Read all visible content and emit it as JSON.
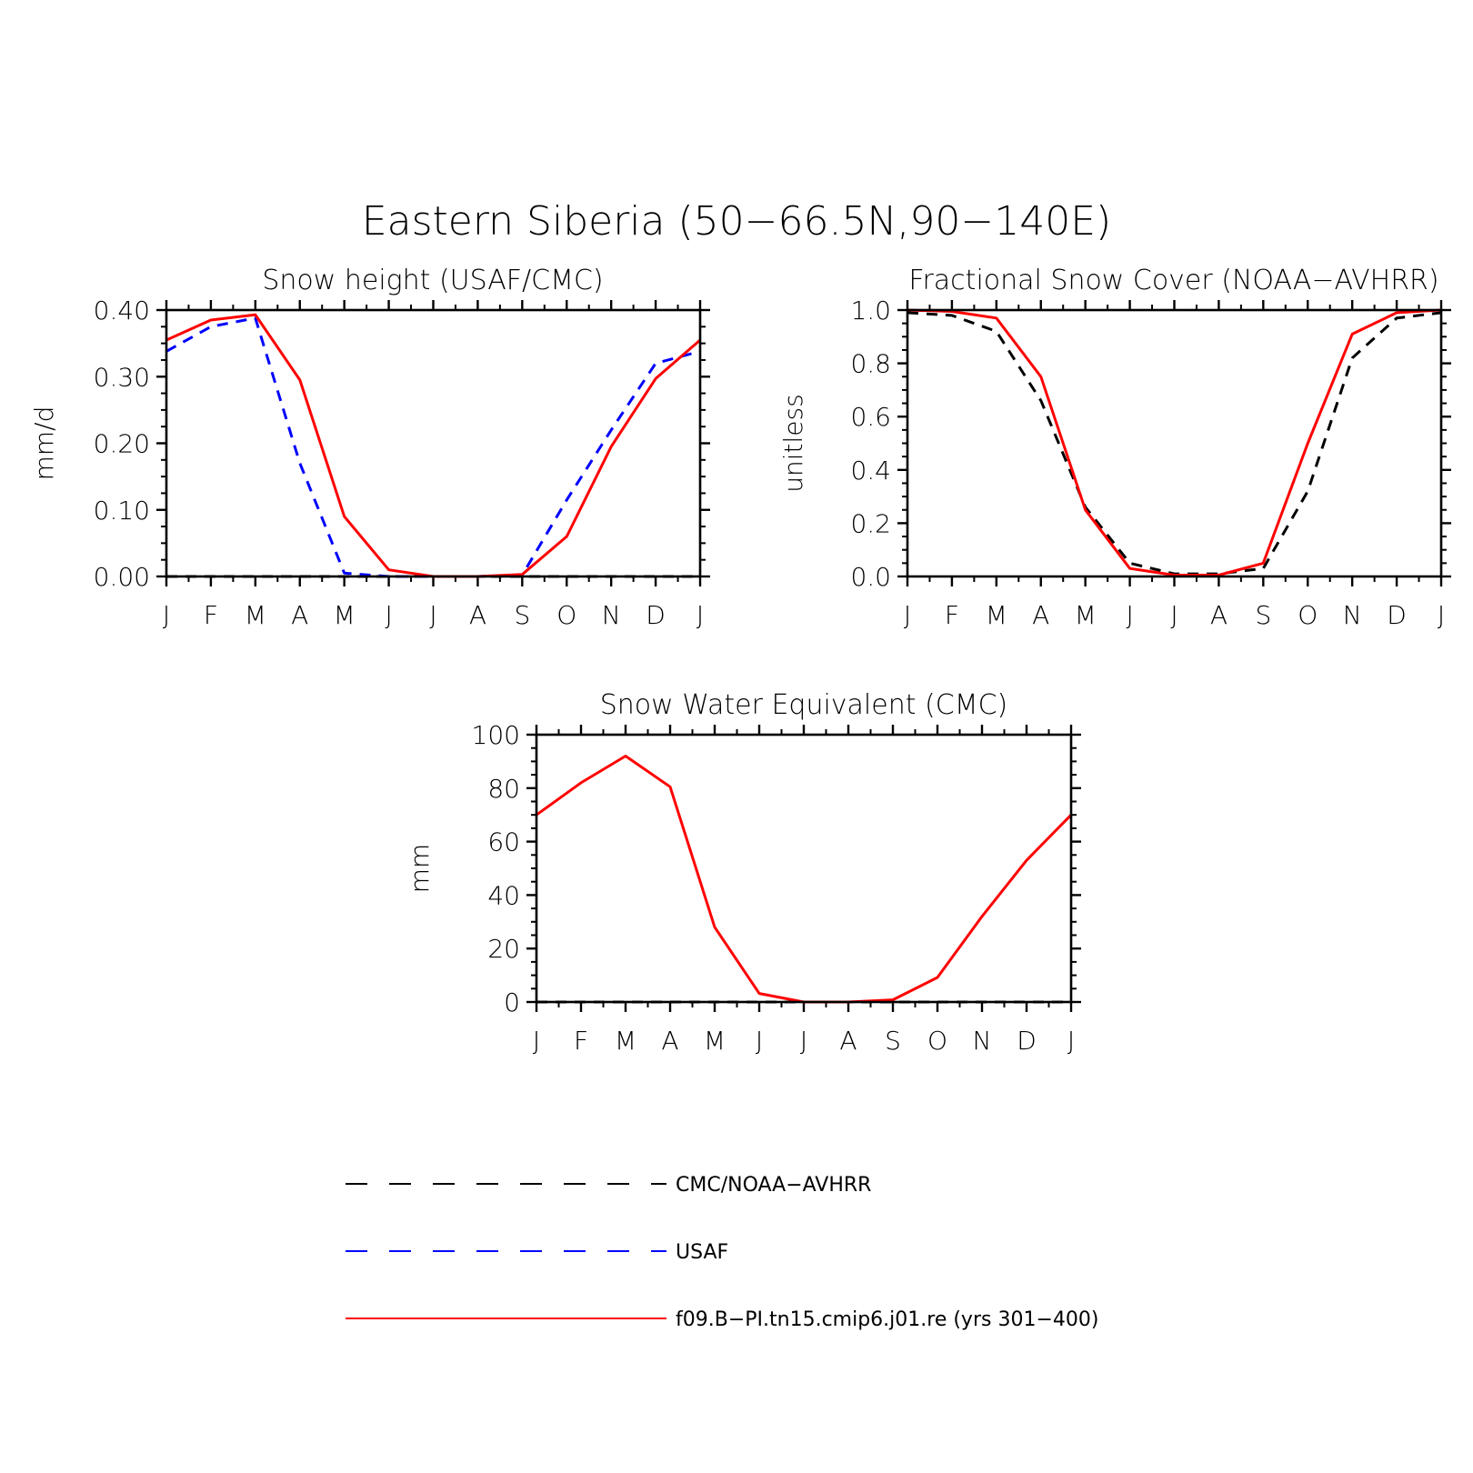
{
  "figure": {
    "title": "Eastern Siberia (50−66.5N,90−140E)"
  },
  "colors": {
    "model": "#ff0000",
    "cmc_noaa": "#000000",
    "usaf": "#0000ff"
  },
  "legend": [
    {
      "key": "cmc",
      "label": "CMC/NOAA−AVHRR",
      "color": "#000000",
      "style": "dashed"
    },
    {
      "key": "usaf",
      "label": "USAF",
      "color": "#0000ff",
      "style": "dashed"
    },
    {
      "key": "model",
      "label": "f09.B−PI.tn15.cmip6.j01.re (yrs 301−400)",
      "color": "#ff0000",
      "style": "solid"
    }
  ],
  "chart_data": [
    {
      "type": "line",
      "title": "Snow height (USAF/CMC)",
      "ylabel": "mm/d",
      "xlabel": "",
      "categories": [
        "J",
        "F",
        "M",
        "A",
        "M",
        "J",
        "J",
        "A",
        "S",
        "O",
        "N",
        "D",
        "J"
      ],
      "ylim": [
        0,
        0.4
      ],
      "yticks": [
        "0.00",
        "0.10",
        "0.20",
        "0.30",
        "0.40"
      ],
      "yticks_values": [
        0,
        0.1,
        0.2,
        0.3,
        0.4
      ],
      "series": [
        {
          "key": "model",
          "values": [
            0.355,
            0.385,
            0.393,
            0.295,
            0.09,
            0.01,
            0.0,
            0.0,
            0.003,
            0.06,
            0.195,
            0.297,
            0.355
          ]
        },
        {
          "key": "usaf",
          "values": [
            0.338,
            0.375,
            0.388,
            0.17,
            0.005,
            0.0,
            0.0,
            0.0,
            0.002,
            0.115,
            0.22,
            0.32,
            0.338
          ]
        },
        {
          "key": "cmc",
          "values": [
            0,
            0,
            0,
            0,
            0,
            0,
            0,
            0,
            0,
            0,
            0,
            0,
            0
          ]
        }
      ]
    },
    {
      "type": "line",
      "title": "Fractional Snow Cover (NOAA−AVHRR)",
      "ylabel": "unitless",
      "xlabel": "",
      "categories": [
        "J",
        "F",
        "M",
        "A",
        "M",
        "J",
        "J",
        "A",
        "S",
        "O",
        "N",
        "D",
        "J"
      ],
      "ylim": [
        0,
        1.0
      ],
      "yticks": [
        "0.0",
        "0.2",
        "0.4",
        "0.6",
        "0.8",
        "1.0"
      ],
      "yticks_values": [
        0,
        0.2,
        0.4,
        0.6,
        0.8,
        1.0
      ],
      "series": [
        {
          "key": "model",
          "values": [
            1.0,
            0.995,
            0.97,
            0.75,
            0.25,
            0.03,
            0.005,
            0.005,
            0.05,
            0.5,
            0.91,
            0.99,
            1.0
          ]
        },
        {
          "key": "cmc",
          "values": [
            0.99,
            0.98,
            0.92,
            0.66,
            0.26,
            0.05,
            0.01,
            0.01,
            0.03,
            0.32,
            0.82,
            0.97,
            0.99
          ]
        }
      ]
    },
    {
      "type": "line",
      "title": "Snow Water Equivalent (CMC)",
      "ylabel": "mm",
      "xlabel": "",
      "categories": [
        "J",
        "F",
        "M",
        "A",
        "M",
        "J",
        "J",
        "A",
        "S",
        "O",
        "N",
        "D",
        "J"
      ],
      "ylim": [
        0,
        100
      ],
      "yticks": [
        "0",
        "20",
        "40",
        "60",
        "80",
        "100"
      ],
      "yticks_values": [
        0,
        20,
        40,
        60,
        80,
        100
      ],
      "series": [
        {
          "key": "model",
          "values": [
            70,
            82,
            92,
            80.5,
            28,
            3.2,
            0,
            0,
            0.8,
            9.2,
            32,
            53,
            70
          ]
        },
        {
          "key": "cmc",
          "values": [
            0,
            0,
            0,
            0,
            0,
            0,
            0,
            0,
            0,
            0,
            0,
            0,
            0
          ]
        }
      ]
    }
  ]
}
